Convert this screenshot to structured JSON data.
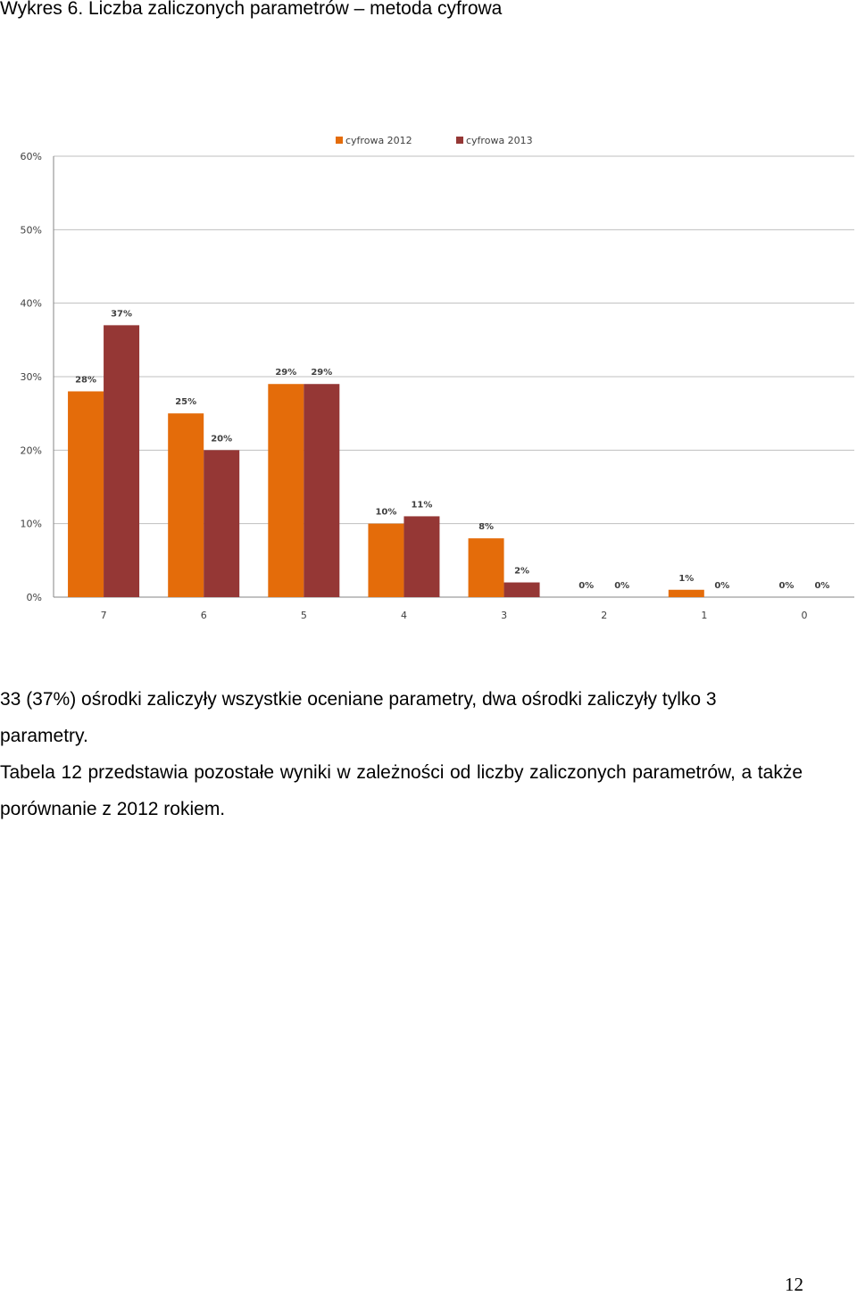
{
  "caption": "Wykres 6. Liczba zaliczonych parametrów – metoda cyfrowa",
  "chart_data": {
    "type": "bar",
    "categories": [
      "7",
      "6",
      "5",
      "4",
      "3",
      "2",
      "1",
      "0"
    ],
    "series": [
      {
        "name": "cyfrowa 2012",
        "values": [
          28,
          25,
          29,
          10,
          8,
          0,
          1,
          0
        ],
        "labels": [
          "28%",
          "25%",
          "29%",
          "10%",
          "8%",
          "0%",
          "1%",
          "0%"
        ],
        "color": "#E46C0A"
      },
      {
        "name": "cyfrowa 2013",
        "values": [
          37,
          20,
          29,
          11,
          2,
          0,
          0,
          0
        ],
        "labels": [
          "37%",
          "20%",
          "29%",
          "11%",
          "2%",
          "0%",
          "0%",
          "0%"
        ],
        "color": "#953735"
      }
    ],
    "ylim": [
      0,
      60
    ],
    "yticks": [
      0,
      10,
      20,
      30,
      40,
      50,
      60
    ],
    "ytick_labels": [
      "0%",
      "10%",
      "20%",
      "30%",
      "40%",
      "50%",
      "60%"
    ],
    "grid": true,
    "legend": "top-center",
    "title": "",
    "xlabel": "",
    "ylabel": ""
  },
  "paragraph1": "33 (37%) ośrodki zaliczyły wszystkie oceniane parametry, dwa ośrodki zaliczyły tylko 3 parametry.",
  "paragraph2": "Tabela 12 przedstawia pozostałe wyniki w zależności od liczby zaliczonych parametrów, a także porównanie z 2012 rokiem.",
  "page_number": "12"
}
